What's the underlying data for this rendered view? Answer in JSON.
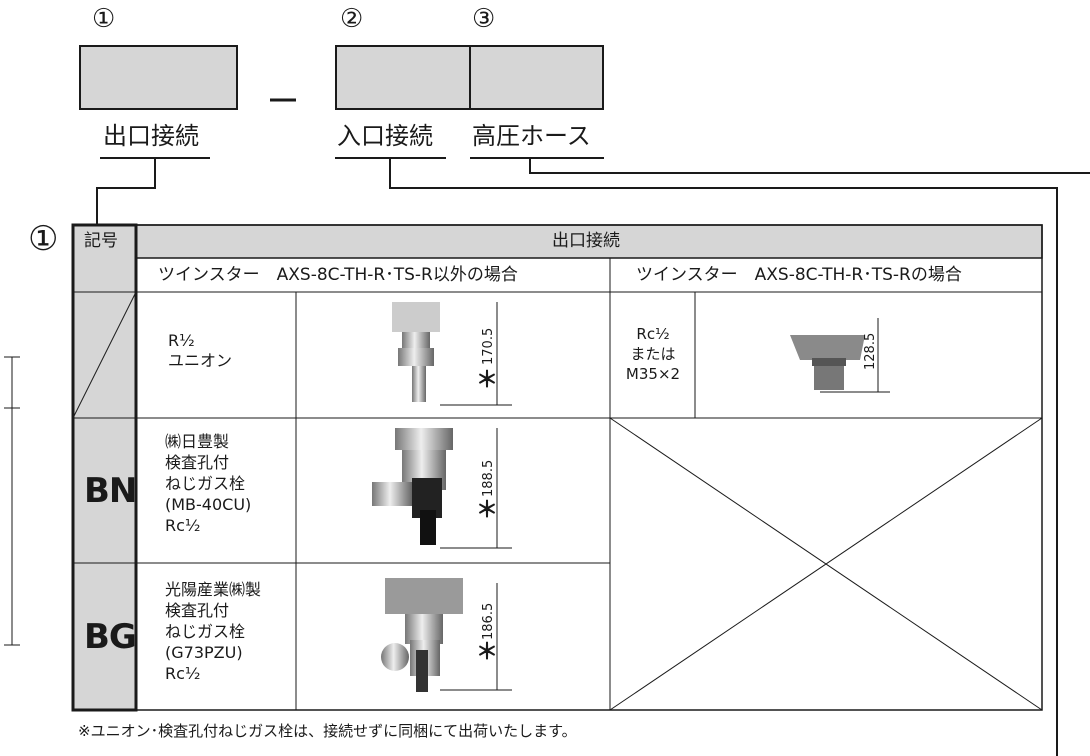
{
  "header": {
    "slots": [
      {
        "number": "①",
        "label": "出口接続"
      },
      {
        "number": "②",
        "label": "入口接続"
      },
      {
        "number": "③",
        "label": "高圧ホース"
      }
    ]
  },
  "table": {
    "marker": "①",
    "header": [
      "記号",
      "出口接続"
    ],
    "subheader": [
      "ツインスター　AXS-8C-TH-R･TS-R以外の場合",
      "ツインスター　AXS-8C-TH-R･TS-Rの場合"
    ],
    "rows": [
      {
        "description": [
          "R¹⁄₂",
          "ユニオン"
        ],
        "note_mark": "＊",
        "dimension": "170.5",
        "alt_description": [
          "Rc¹⁄₂",
          "または",
          "M35×2"
        ],
        "alt_dimension": "128.5"
      },
      {
        "code": "BN",
        "description": [
          "㈱日豊製",
          "検査孔付",
          "ねじガス栓",
          "(MB-40CU)",
          "Rc¹⁄₂"
        ],
        "note_mark": "＊",
        "dimension": "188.5"
      },
      {
        "code": "BG",
        "description": [
          "光陽産業㈱製",
          "検査孔付",
          "ねじガス栓",
          "(G73PZU)",
          "Rc¹⁄₂"
        ],
        "note_mark": "＊",
        "dimension": "186.5"
      }
    ]
  },
  "footnote": "※ユニオン･検査孔付ねじガス栓は、接続せずに同梱にて出荷いたします。"
}
